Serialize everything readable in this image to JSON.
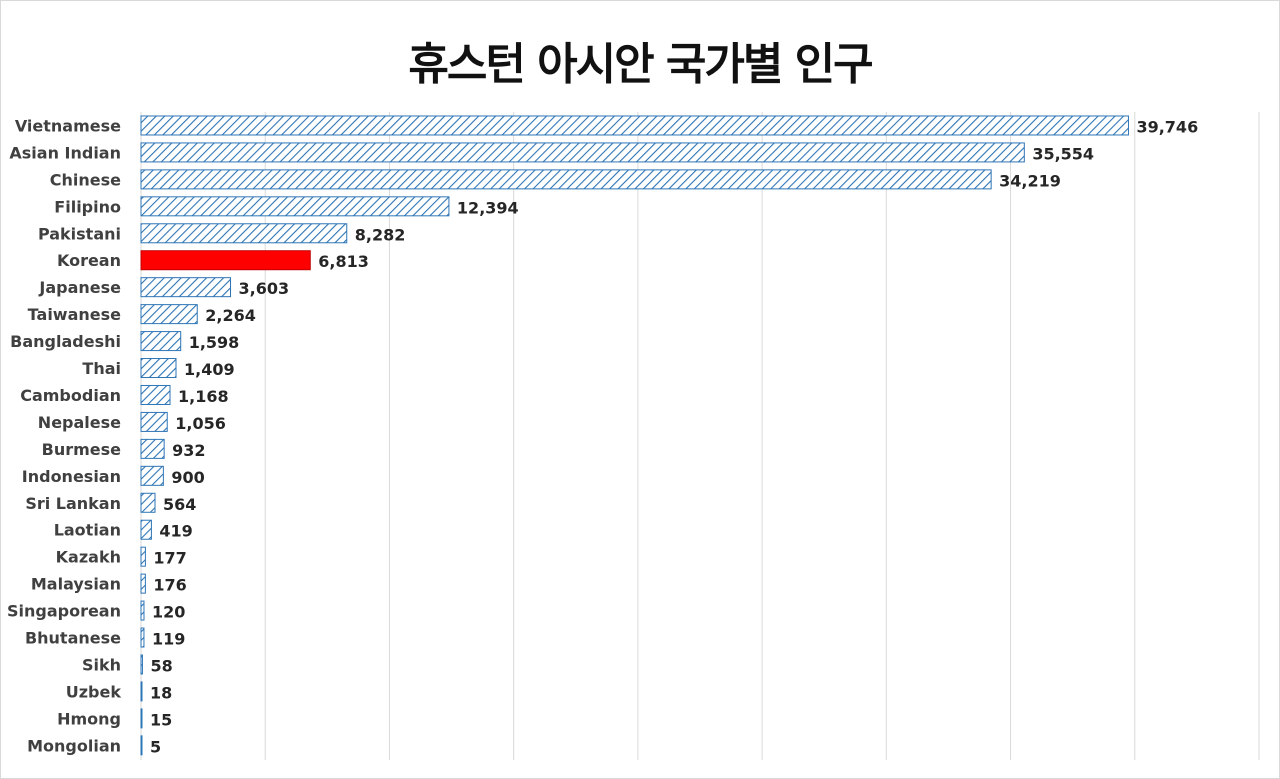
{
  "chart_data": {
    "type": "bar",
    "orientation": "horizontal",
    "title": "휴스턴 아시안 국가별 인구",
    "categories": [
      "Vietnamese",
      "Asian Indian",
      "Chinese",
      "Filipino",
      "Pakistani",
      "Korean",
      "Japanese",
      "Taiwanese",
      "Bangladeshi",
      "Thai",
      "Cambodian",
      "Nepalese",
      "Burmese",
      "Indonesian",
      "Sri Lankan",
      "Laotian",
      "Kazakh",
      "Malaysian",
      "Singaporean",
      "Bhutanese",
      "Sikh",
      "Uzbek",
      "Hmong",
      "Mongolian"
    ],
    "values": [
      39746,
      35554,
      34219,
      12394,
      8282,
      6813,
      3603,
      2264,
      1598,
      1409,
      1168,
      1056,
      932,
      900,
      564,
      419,
      177,
      176,
      120,
      119,
      58,
      18,
      15,
      5
    ],
    "value_labels": [
      "39,746",
      "35,554",
      "34,219",
      "12,394",
      "8,282",
      "6,813",
      "3,603",
      "2,264",
      "1,598",
      "1,409",
      "1,168",
      "1,056",
      "932",
      "900",
      "564",
      "419",
      "177",
      "176",
      "120",
      "119",
      "58",
      "18",
      "15",
      "5"
    ],
    "highlight_category": "Korean",
    "xlim": [
      0,
      45000
    ],
    "x_gridlines": true,
    "x_tick_labels_shown": false,
    "colors": {
      "bar_stroke": "#2e75b6",
      "bar_hatch": "#2e75b6",
      "highlight": "#ff0000",
      "gridline": "#d9d9d9"
    }
  }
}
